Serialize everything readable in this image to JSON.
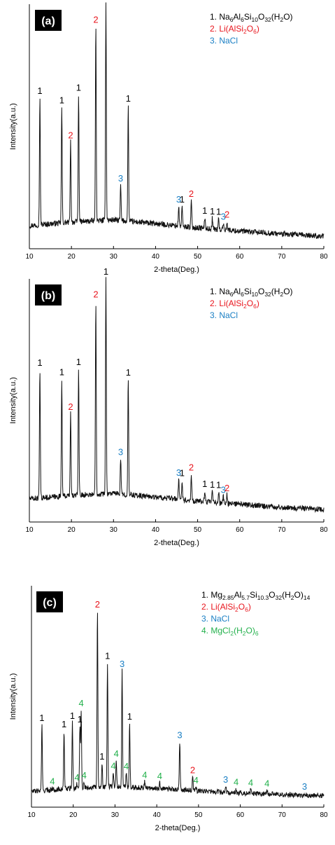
{
  "chart_data": [
    {
      "type": "line",
      "panel_label": "(a)",
      "xlabel": "2-theta(Deg.)",
      "ylabel": "Intensity(a.u.)",
      "xlim": [
        10,
        80
      ],
      "x_ticks": [
        10,
        20,
        30,
        40,
        50,
        60,
        70,
        80
      ],
      "y_ticks": false,
      "grid": false,
      "legend_position": "top-right",
      "legend": [
        {
          "id": "1",
          "prefix": "1. ",
          "label": "Na6Al6Si10O32(H2O)",
          "color": "#000000"
        },
        {
          "id": "2",
          "prefix": "2. ",
          "label": "Li(AlSi2O6)",
          "color": "#e8141c"
        },
        {
          "id": "3",
          "prefix": "3. ",
          "label": "NaCl",
          "color": "#1a7fc4"
        }
      ],
      "baseline": [
        [
          10,
          0.06
        ],
        [
          20,
          0.075
        ],
        [
          30,
          0.085
        ],
        [
          40,
          0.068
        ],
        [
          50,
          0.05
        ],
        [
          60,
          0.035
        ],
        [
          70,
          0.022
        ],
        [
          80,
          0.012
        ]
      ],
      "peaks": [
        {
          "x": 12.5,
          "y": 0.57,
          "phase": "1"
        },
        {
          "x": 17.7,
          "y": 0.52,
          "phase": "1"
        },
        {
          "x": 19.8,
          "y": 0.36,
          "phase": "2"
        },
        {
          "x": 21.7,
          "y": 0.57,
          "phase": "1"
        },
        {
          "x": 25.8,
          "y": 0.87,
          "phase": "2"
        },
        {
          "x": 28.2,
          "y": 0.98,
          "phase": "1"
        },
        {
          "x": 31.7,
          "y": 0.16,
          "phase": "3"
        },
        {
          "x": 33.5,
          "y": 0.52,
          "phase": "1"
        },
        {
          "x": 45.5,
          "y": 0.09,
          "phase": "3"
        },
        {
          "x": 46.3,
          "y": 0.09,
          "phase": "1"
        },
        {
          "x": 48.5,
          "y": 0.12,
          "phase": "2"
        },
        {
          "x": 51.7,
          "y": 0.05,
          "phase": "1"
        },
        {
          "x": 53.5,
          "y": 0.05,
          "phase": "1"
        },
        {
          "x": 55.0,
          "y": 0.05,
          "phase": "1"
        },
        {
          "x": 56.1,
          "y": 0.03,
          "phase": "3"
        },
        {
          "x": 57.0,
          "y": 0.04,
          "phase": "2"
        }
      ]
    },
    {
      "type": "line",
      "panel_label": "(b)",
      "xlabel": "2-theta(Deg.)",
      "ylabel": "Intensity(a.u.)",
      "xlim": [
        10,
        80
      ],
      "x_ticks": [
        10,
        20,
        30,
        40,
        50,
        60,
        70,
        80
      ],
      "y_ticks": false,
      "grid": false,
      "legend_position": "top-right",
      "legend": [
        {
          "id": "1",
          "prefix": "1. ",
          "label": "Na6Al6Si10O32(H2O)",
          "color": "#000000"
        },
        {
          "id": "2",
          "prefix": "2. ",
          "label": "Li(AlSi2O6)",
          "color": "#e8141c"
        },
        {
          "id": "3",
          "prefix": "3. ",
          "label": "NaCl",
          "color": "#1a7fc4"
        }
      ],
      "baseline": [
        [
          10,
          0.06
        ],
        [
          20,
          0.075
        ],
        [
          30,
          0.085
        ],
        [
          40,
          0.068
        ],
        [
          50,
          0.05
        ],
        [
          60,
          0.035
        ],
        [
          70,
          0.022
        ],
        [
          80,
          0.012
        ]
      ],
      "peaks": [
        {
          "x": 12.5,
          "y": 0.58,
          "phase": "1"
        },
        {
          "x": 17.7,
          "y": 0.53,
          "phase": "1"
        },
        {
          "x": 19.8,
          "y": 0.37,
          "phase": "2"
        },
        {
          "x": 21.7,
          "y": 0.57,
          "phase": "1"
        },
        {
          "x": 25.8,
          "y": 0.87,
          "phase": "2"
        },
        {
          "x": 28.2,
          "y": 0.97,
          "phase": "1"
        },
        {
          "x": 31.7,
          "y": 0.16,
          "phase": "3"
        },
        {
          "x": 33.5,
          "y": 0.52,
          "phase": "1"
        },
        {
          "x": 45.5,
          "y": 0.09,
          "phase": "3"
        },
        {
          "x": 46.3,
          "y": 0.09,
          "phase": "1"
        },
        {
          "x": 48.5,
          "y": 0.12,
          "phase": "2"
        },
        {
          "x": 51.7,
          "y": 0.05,
          "phase": "1"
        },
        {
          "x": 53.5,
          "y": 0.05,
          "phase": "1"
        },
        {
          "x": 55.0,
          "y": 0.05,
          "phase": "1"
        },
        {
          "x": 56.1,
          "y": 0.03,
          "phase": "3"
        },
        {
          "x": 57.0,
          "y": 0.04,
          "phase": "2"
        }
      ]
    },
    {
      "type": "line",
      "panel_label": "(c)",
      "xlabel": "2-theta(Deg.)",
      "ylabel": "Intensity(a.u.)",
      "xlim": [
        10,
        80
      ],
      "x_ticks": [
        10,
        20,
        30,
        40,
        50,
        60,
        70,
        80
      ],
      "y_ticks": false,
      "grid": false,
      "legend_position": "top-right",
      "legend": [
        {
          "id": "1",
          "prefix": "1. ",
          "label": "Mg2.85Al5.7Si10.3O32(H2O)14",
          "color": "#000000"
        },
        {
          "id": "2",
          "prefix": "2. ",
          "label": "Li(AlSi2O6)",
          "color": "#e8141c"
        },
        {
          "id": "3",
          "prefix": "3. ",
          "label": "NaCl",
          "color": "#1a7fc4"
        },
        {
          "id": "4",
          "prefix": "4. ",
          "label": "MgCl2(H2O)6",
          "color": "#22b04b"
        }
      ],
      "baseline": [
        [
          10,
          0.03
        ],
        [
          20,
          0.045
        ],
        [
          30,
          0.055
        ],
        [
          40,
          0.045
        ],
        [
          50,
          0.032
        ],
        [
          60,
          0.022
        ],
        [
          70,
          0.014
        ],
        [
          80,
          0.008
        ]
      ],
      "peaks": [
        {
          "x": 12.5,
          "y": 0.33,
          "phase": "1"
        },
        {
          "x": 15.0,
          "y": 0.01,
          "phase": "4"
        },
        {
          "x": 17.8,
          "y": 0.29,
          "phase": "1"
        },
        {
          "x": 19.8,
          "y": 0.33,
          "phase": "1"
        },
        {
          "x": 20.9,
          "y": 0.02,
          "phase": "4"
        },
        {
          "x": 21.6,
          "y": 0.31,
          "phase": "1"
        },
        {
          "x": 21.9,
          "y": 0.39,
          "phase": "4"
        },
        {
          "x": 22.6,
          "y": 0.03,
          "phase": "4"
        },
        {
          "x": 25.8,
          "y": 0.88,
          "phase": "2"
        },
        {
          "x": 26.9,
          "y": 0.12,
          "phase": "1"
        },
        {
          "x": 28.2,
          "y": 0.62,
          "phase": "1"
        },
        {
          "x": 29.6,
          "y": 0.07,
          "phase": "4"
        },
        {
          "x": 30.3,
          "y": 0.13,
          "phase": "4"
        },
        {
          "x": 31.7,
          "y": 0.58,
          "phase": "3"
        },
        {
          "x": 32.7,
          "y": 0.07,
          "phase": "4"
        },
        {
          "x": 33.5,
          "y": 0.32,
          "phase": "1"
        },
        {
          "x": 37.1,
          "y": 0.03,
          "phase": "4"
        },
        {
          "x": 40.7,
          "y": 0.03,
          "phase": "4"
        },
        {
          "x": 45.5,
          "y": 0.24,
          "phase": "3"
        },
        {
          "x": 48.6,
          "y": 0.07,
          "phase": "2"
        },
        {
          "x": 49.4,
          "y": 0.02,
          "phase": "4"
        },
        {
          "x": 56.5,
          "y": 0.03,
          "phase": "3"
        },
        {
          "x": 59.0,
          "y": 0.02,
          "phase": "4"
        },
        {
          "x": 62.5,
          "y": 0.02,
          "phase": "4"
        },
        {
          "x": 66.4,
          "y": 0.02,
          "phase": "4"
        },
        {
          "x": 75.4,
          "y": 0.01,
          "phase": "3"
        }
      ]
    }
  ]
}
